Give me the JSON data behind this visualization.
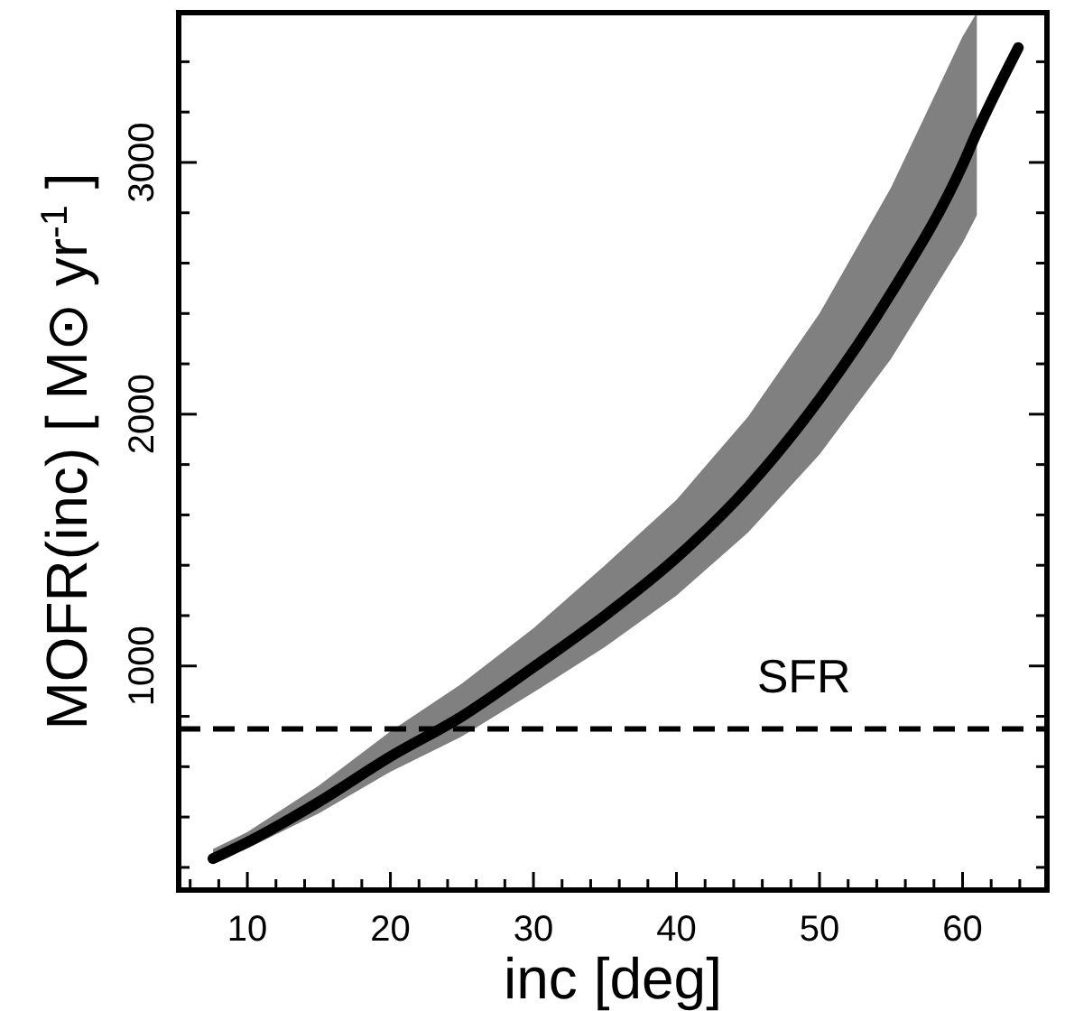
{
  "chart_data": {
    "type": "line",
    "xlabel": "inc [deg]",
    "ylabel": "MOFR(inc) [ M⊙ yr$^{-1}$ ]",
    "x": [
      7.6,
      10,
      15,
      20,
      25,
      30,
      35,
      40,
      45,
      50,
      55,
      60,
      61,
      63.9
    ],
    "series": [
      {
        "color": "#000000",
        "values": [
          235,
          300,
          460,
          640,
          800,
          995,
          1200,
          1430,
          1710,
          2060,
          2480,
          2990,
          3120,
          3456
        ],
        "upper": [
          273,
          340,
          525,
          740,
          930,
          1150,
          1400,
          1660,
          1990,
          2400,
          2900,
          3500,
          3595,
          null
        ],
        "lower": [
          219,
          275,
          415,
          580,
          720,
          895,
          1075,
          1280,
          1530,
          1840,
          2220,
          2680,
          2790,
          null
        ]
      }
    ],
    "xlim": [
      5.2,
      65.9
    ],
    "ylim": [
      110,
      3595
    ],
    "xticks": [
      {
        "value": 6,
        "label": null
      },
      {
        "value": 8,
        "label": null
      },
      10,
      {
        "value": 12,
        "label": null
      },
      {
        "value": 14,
        "label": null
      },
      {
        "value": 16,
        "label": null
      },
      {
        "value": 18,
        "label": null
      },
      20,
      {
        "value": 22,
        "label": null
      },
      {
        "value": 24,
        "label": null
      },
      {
        "value": 26,
        "label": null
      },
      {
        "value": 28,
        "label": null
      },
      30,
      {
        "value": 32,
        "label": null
      },
      {
        "value": 34,
        "label": null
      },
      {
        "value": 36,
        "label": null
      },
      {
        "value": 38,
        "label": null
      },
      40,
      {
        "value": 42,
        "label": null
      },
      {
        "value": 44,
        "label": null
      },
      {
        "value": 46,
        "label": null
      },
      {
        "value": 48,
        "label": null
      },
      50,
      {
        "value": 52,
        "label": null
      },
      {
        "value": 54,
        "label": null
      },
      {
        "value": 56,
        "label": null
      },
      {
        "value": 58,
        "label": null
      },
      60,
      {
        "value": 62,
        "label": null
      },
      {
        "value": 64,
        "label": null
      }
    ],
    "yticks": [
      {
        "value": 200,
        "label": null
      },
      {
        "value": 400,
        "label": null
      },
      {
        "value": 600,
        "label": null
      },
      {
        "value": 800,
        "label": null
      },
      1000,
      {
        "value": 1200,
        "label": null
      },
      {
        "value": 1400,
        "label": null
      },
      {
        "value": 1600,
        "label": null
      },
      {
        "value": 1800,
        "label": null
      },
      2000,
      {
        "value": 2200,
        "label": null
      },
      {
        "value": 2400,
        "label": null
      },
      {
        "value": 2600,
        "label": null
      },
      {
        "value": 2800,
        "label": null
      },
      3000,
      {
        "value": 3200,
        "label": null
      },
      {
        "value": 3400,
        "label": null
      }
    ],
    "ref_lines": [
      {
        "axis": "y",
        "value": 750,
        "label": "SFR",
        "color": "#000000",
        "line_style": "dashed"
      }
    ],
    "grid": false,
    "line_style": "solid",
    "marker": "none"
  }
}
